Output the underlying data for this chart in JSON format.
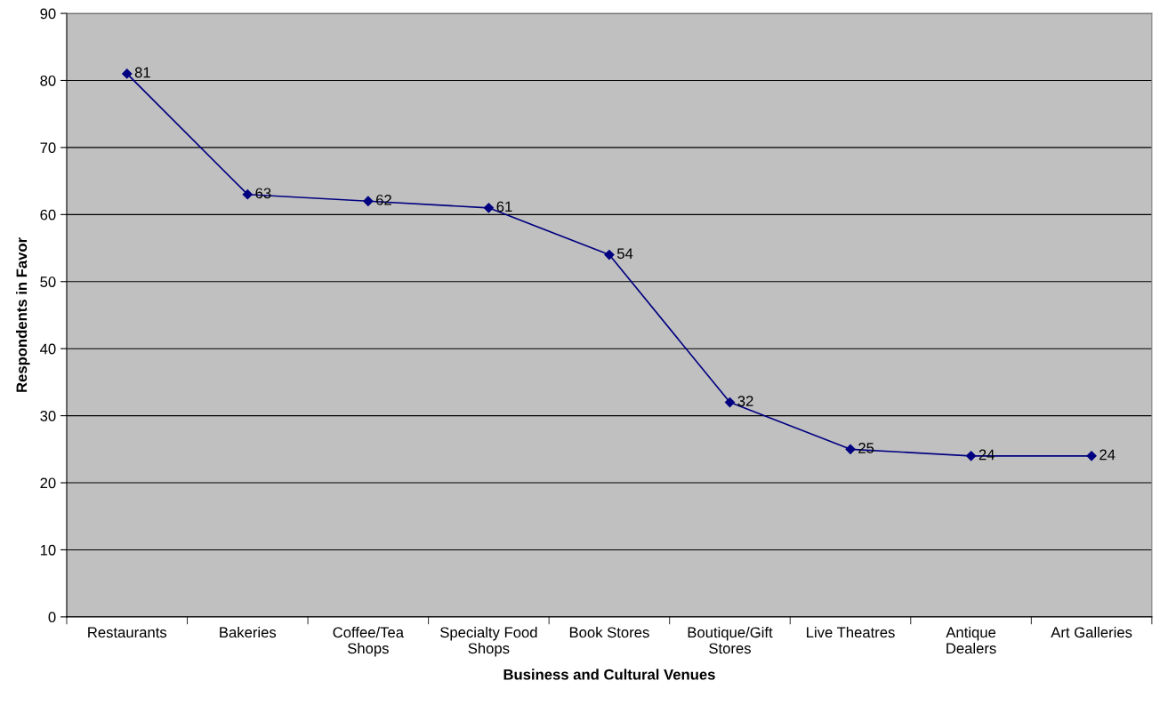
{
  "chart_data": {
    "type": "line",
    "xlabel": "Business and Cultural Venues",
    "ylabel": "Respondents in Favor",
    "categories": [
      "Restaurants",
      "Bakeries",
      "Coffee/Tea\nShops",
      "Specialty Food\nShops",
      "Book Stores",
      "Boutique/Gift\nStores",
      "Live Theatres",
      "Antique\nDealers",
      "Art Galleries"
    ],
    "series": [
      {
        "color": "#000080",
        "values": [
          81,
          63,
          62,
          61,
          54,
          32,
          25,
          24,
          24
        ]
      }
    ],
    "ylim": [
      0,
      90
    ],
    "yticks": [
      0,
      10,
      20,
      30,
      40,
      50,
      60,
      70,
      80,
      90
    ],
    "grid": "y",
    "marker": "diamond",
    "line_style": "solid",
    "data_labels": true,
    "legend": false
  }
}
